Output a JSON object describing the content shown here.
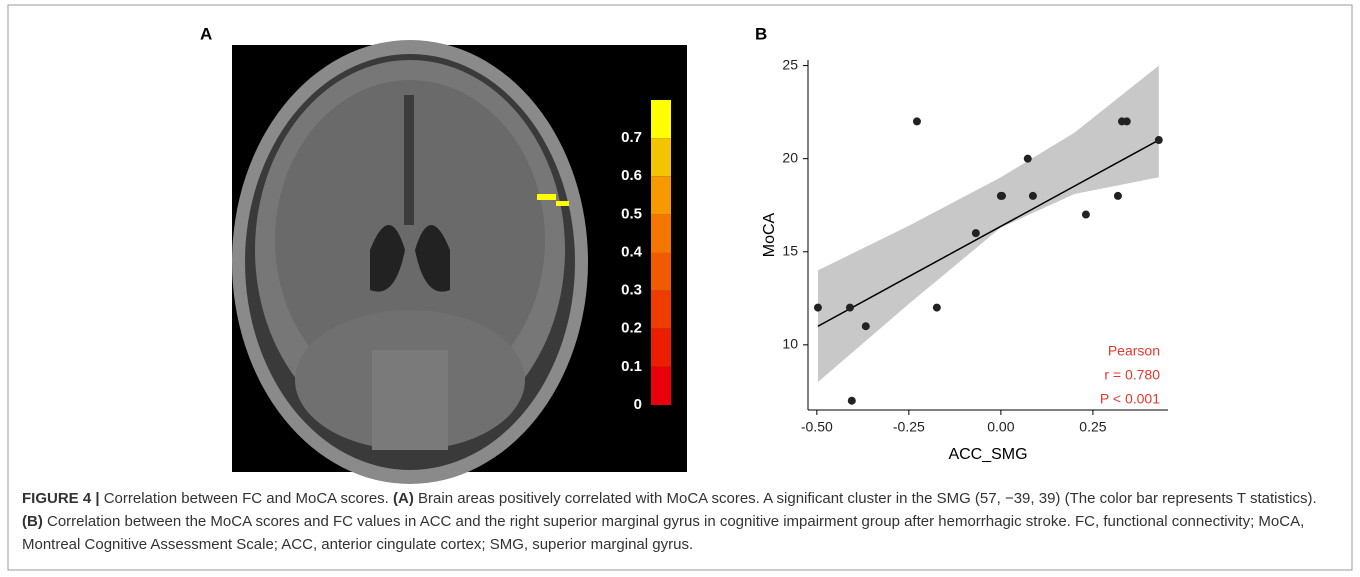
{
  "panel_a": {
    "label": "A",
    "colorbar": {
      "lim": [
        0,
        0.8
      ],
      "ticks": [
        0,
        0.1,
        0.2,
        0.3,
        0.4,
        0.5,
        0.6,
        0.7
      ],
      "colors": [
        "#e8000c",
        "#ec1e00",
        "#ef3c00",
        "#f25a00",
        "#f47800",
        "#f69a00",
        "#f4c400",
        "#ffff00"
      ]
    }
  },
  "chart_data": {
    "type": "scatter",
    "panel_label": "B",
    "x_label": "ACC_SMG",
    "y_label": "MoCA",
    "color": "#222222",
    "x": [
      -0.497,
      -0.41,
      -0.405,
      -0.367,
      -0.228,
      -0.174,
      -0.068,
      0.0,
      0.003,
      0.073,
      0.087,
      0.231,
      0.318,
      0.329,
      0.342,
      0.429
    ],
    "values": [
      12,
      12,
      7,
      11,
      22,
      12,
      16,
      18,
      18,
      20,
      18,
      17,
      18,
      22,
      22,
      21
    ],
    "fit": {
      "x": [
        -0.497,
        0.429
      ],
      "values": [
        11,
        21
      ],
      "color": "#000000"
    },
    "band": {
      "x": [
        -0.497,
        -0.25,
        0,
        0.2,
        0.429
      ],
      "lower": [
        8,
        12.2,
        16.3,
        18.1,
        19
      ],
      "upper": [
        14,
        16.4,
        19,
        21.4,
        25
      ],
      "color": "#c8c8c8"
    },
    "xlim": [
      -0.524,
      0.454
    ],
    "ylim": [
      6.5,
      25.3
    ],
    "xticks": [
      {
        "value": -0.5,
        "label": "-0.50"
      },
      -0.25,
      {
        "value": 0,
        "label": "0.00"
      },
      0.25
    ],
    "yticks": [
      10,
      15,
      20,
      25
    ],
    "annotations": [
      "Pearson",
      "r = 0.780",
      "P < 0.001"
    ],
    "annotation_color": "#e8382e"
  },
  "caption": [
    {
      "text": "FIGURE 4 |",
      "bold": true
    },
    {
      "text": "Correlation between FC and MoCA scores.",
      "bold": false
    },
    {
      "text": "(A)",
      "bold": true
    },
    {
      "text": "Brain areas positively correlated with MoCA scores. A significant cluster in the SMG (57, −39, 39) (The color bar represents T statistics).",
      "bold": false
    },
    {
      "text": "(B)",
      "bold": true
    },
    {
      "text": "Correlation between the MoCA scores and FC values in ACC and the right superior marginal gyrus in cognitive impairment group after hemorrhagic stroke. FC, functional connectivity; MoCA, Montreal Cognitive Assessment Scale; ACC, anterior cingulate cortex; SMG, superior marginal gyrus.",
      "bold": false
    }
  ]
}
